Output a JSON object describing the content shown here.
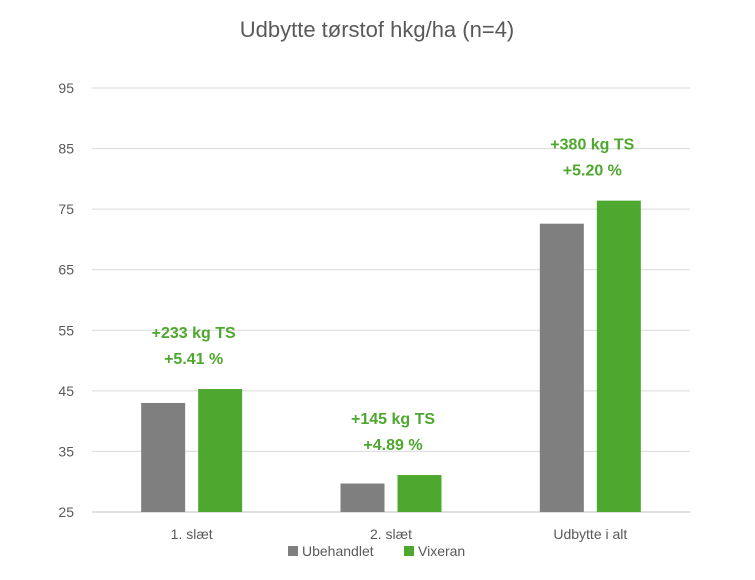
{
  "chart_data": {
    "type": "bar",
    "title": "Udbytte tørstof hkg/ha (n=4)",
    "categories": [
      "1. slæt",
      "2. slæt",
      "Udbytte i alt"
    ],
    "series": [
      {
        "name": "Ubehandlet",
        "color": "#7f7f7f",
        "values": [
          43.0,
          29.7,
          72.6
        ]
      },
      {
        "name": "Vixeran",
        "color": "#4ea72e",
        "values": [
          45.3,
          31.1,
          76.4
        ]
      }
    ],
    "ylim": [
      25,
      95
    ],
    "yticks": [
      25,
      35,
      45,
      55,
      65,
      75,
      85,
      95
    ],
    "grid": true,
    "legend": "bottom",
    "annotation_color": "#4ea72e",
    "annotations": [
      {
        "line1": "+233 kg TS",
        "line2": "+5.41 %"
      },
      {
        "line1": "+145 kg TS",
        "line2": "+4.89 %"
      },
      {
        "line1": "+380 kg TS",
        "line2": "+5.20 %"
      }
    ]
  }
}
